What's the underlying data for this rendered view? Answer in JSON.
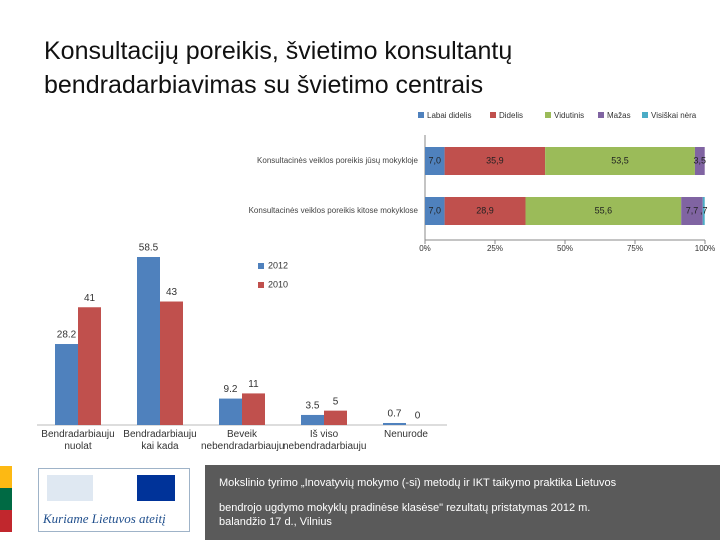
{
  "title_lines": [
    "Konsultacijų poreikis, švietimo konsultantų",
    "bendradarbiavimas su švietimo centrais"
  ],
  "chart_data": [
    {
      "type": "stacked-barh",
      "categories": [
        "Konsultacinės veiklos poreikis jūsų mokykloje",
        "Konsultacinės veiklos poreikis kitose mokyklose"
      ],
      "series": [
        {
          "name": "Labai didelis",
          "color": "#4f81bd",
          "values": [
            7.0,
            7.0
          ],
          "value_labels": [
            "7,0",
            "7,0"
          ]
        },
        {
          "name": "Didelis",
          "color": "#c0504d",
          "values": [
            35.9,
            28.9
          ],
          "value_labels": [
            "35,9",
            "28,9"
          ]
        },
        {
          "name": "Vidutinis",
          "color": "#9bbb59",
          "values": [
            53.5,
            55.6
          ],
          "value_labels": [
            "53,5",
            "55,6"
          ]
        },
        {
          "name": "Mažas",
          "color": "#8064a2",
          "values": [
            3.5,
            7.7
          ],
          "value_labels": [
            "3,5",
            "7,7"
          ]
        },
        {
          "name": "Visiškai nėra",
          "color": "#4bacc6",
          "values": [
            0,
            0.7
          ],
          "value_labels": [
            null,
            ",7"
          ]
        }
      ],
      "xlim": [
        0,
        100
      ],
      "xticks": [
        {
          "value": 0,
          "label": "0%"
        },
        {
          "value": 25,
          "label": "25%"
        },
        {
          "value": 50,
          "label": "50%"
        },
        {
          "value": 75,
          "label": "75%"
        },
        {
          "value": 100,
          "label": "100%"
        }
      ]
    },
    {
      "type": "bar-grouped",
      "categories": [
        "Bendradarbiauju nuolat",
        "Bendradarbiauju kai kada",
        "Beveik nebendradarbiauju",
        "Iš viso nebendradarbiauju",
        "Nenurode"
      ],
      "series": [
        {
          "name": "2012",
          "color": "#4f81bd",
          "values": [
            28.2,
            58.5,
            9.2,
            3.5,
            0.7
          ]
        },
        {
          "name": "2010",
          "color": "#c0504d",
          "values": [
            41,
            43,
            11,
            5,
            0
          ]
        }
      ]
    }
  ],
  "logo_text": "Kuriame Lietuvos ateitį",
  "footer_lines": [
    "Mokslinio tyrimo „Inovatyvių mokymo (-si) metodų ir IKT taikymo praktika Lietuvos",
    "bendrojo ugdymo mokyklų pradinėse klasėse\" rezultatų pristatymas 2012 m.",
    "balandžio 17 d., Vilnius"
  ]
}
